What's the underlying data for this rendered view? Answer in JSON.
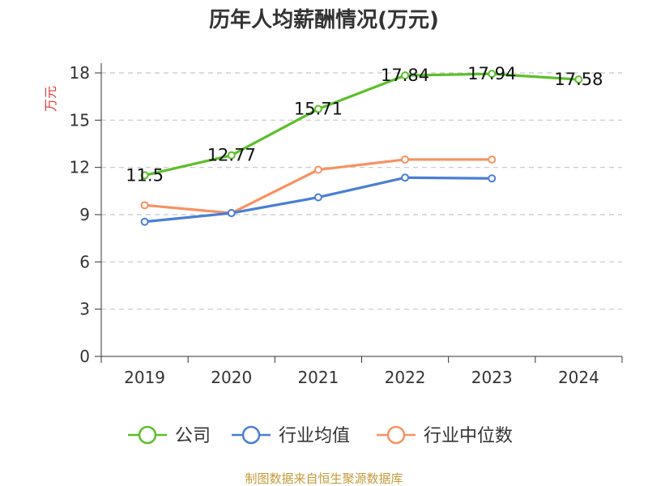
{
  "chart_data": {
    "type": "line",
    "title": "历年人均薪酬情况(万元)",
    "xlabel": "",
    "ylabel": "万元",
    "ylim": [
      0,
      18
    ],
    "yticks": [
      0,
      3,
      6,
      9,
      12,
      15,
      18
    ],
    "grid": true,
    "categories": [
      "2019",
      "2020",
      "2021",
      "2022",
      "2023",
      "2024"
    ],
    "series": [
      {
        "name": "公司",
        "color": "#5cbf2a",
        "values": [
          11.5,
          12.77,
          15.71,
          17.84,
          17.94,
          17.58
        ],
        "labels": [
          "11.5",
          "12.77",
          "15.71",
          "17.84",
          "17.94",
          "17.58"
        ]
      },
      {
        "name": "行业均值",
        "color": "#4a7ed6",
        "values": [
          8.55,
          9.1,
          10.1,
          11.35,
          11.3,
          null
        ]
      },
      {
        "name": "行业中位数",
        "color": "#f79263",
        "values": [
          9.6,
          9.1,
          11.85,
          12.5,
          12.5,
          null
        ]
      }
    ],
    "legend_position": "bottom-center",
    "source": "制图数据来自恒生聚源数据库",
    "ylabel_color": "#e03b3b",
    "source_color": "#c49a3a"
  }
}
